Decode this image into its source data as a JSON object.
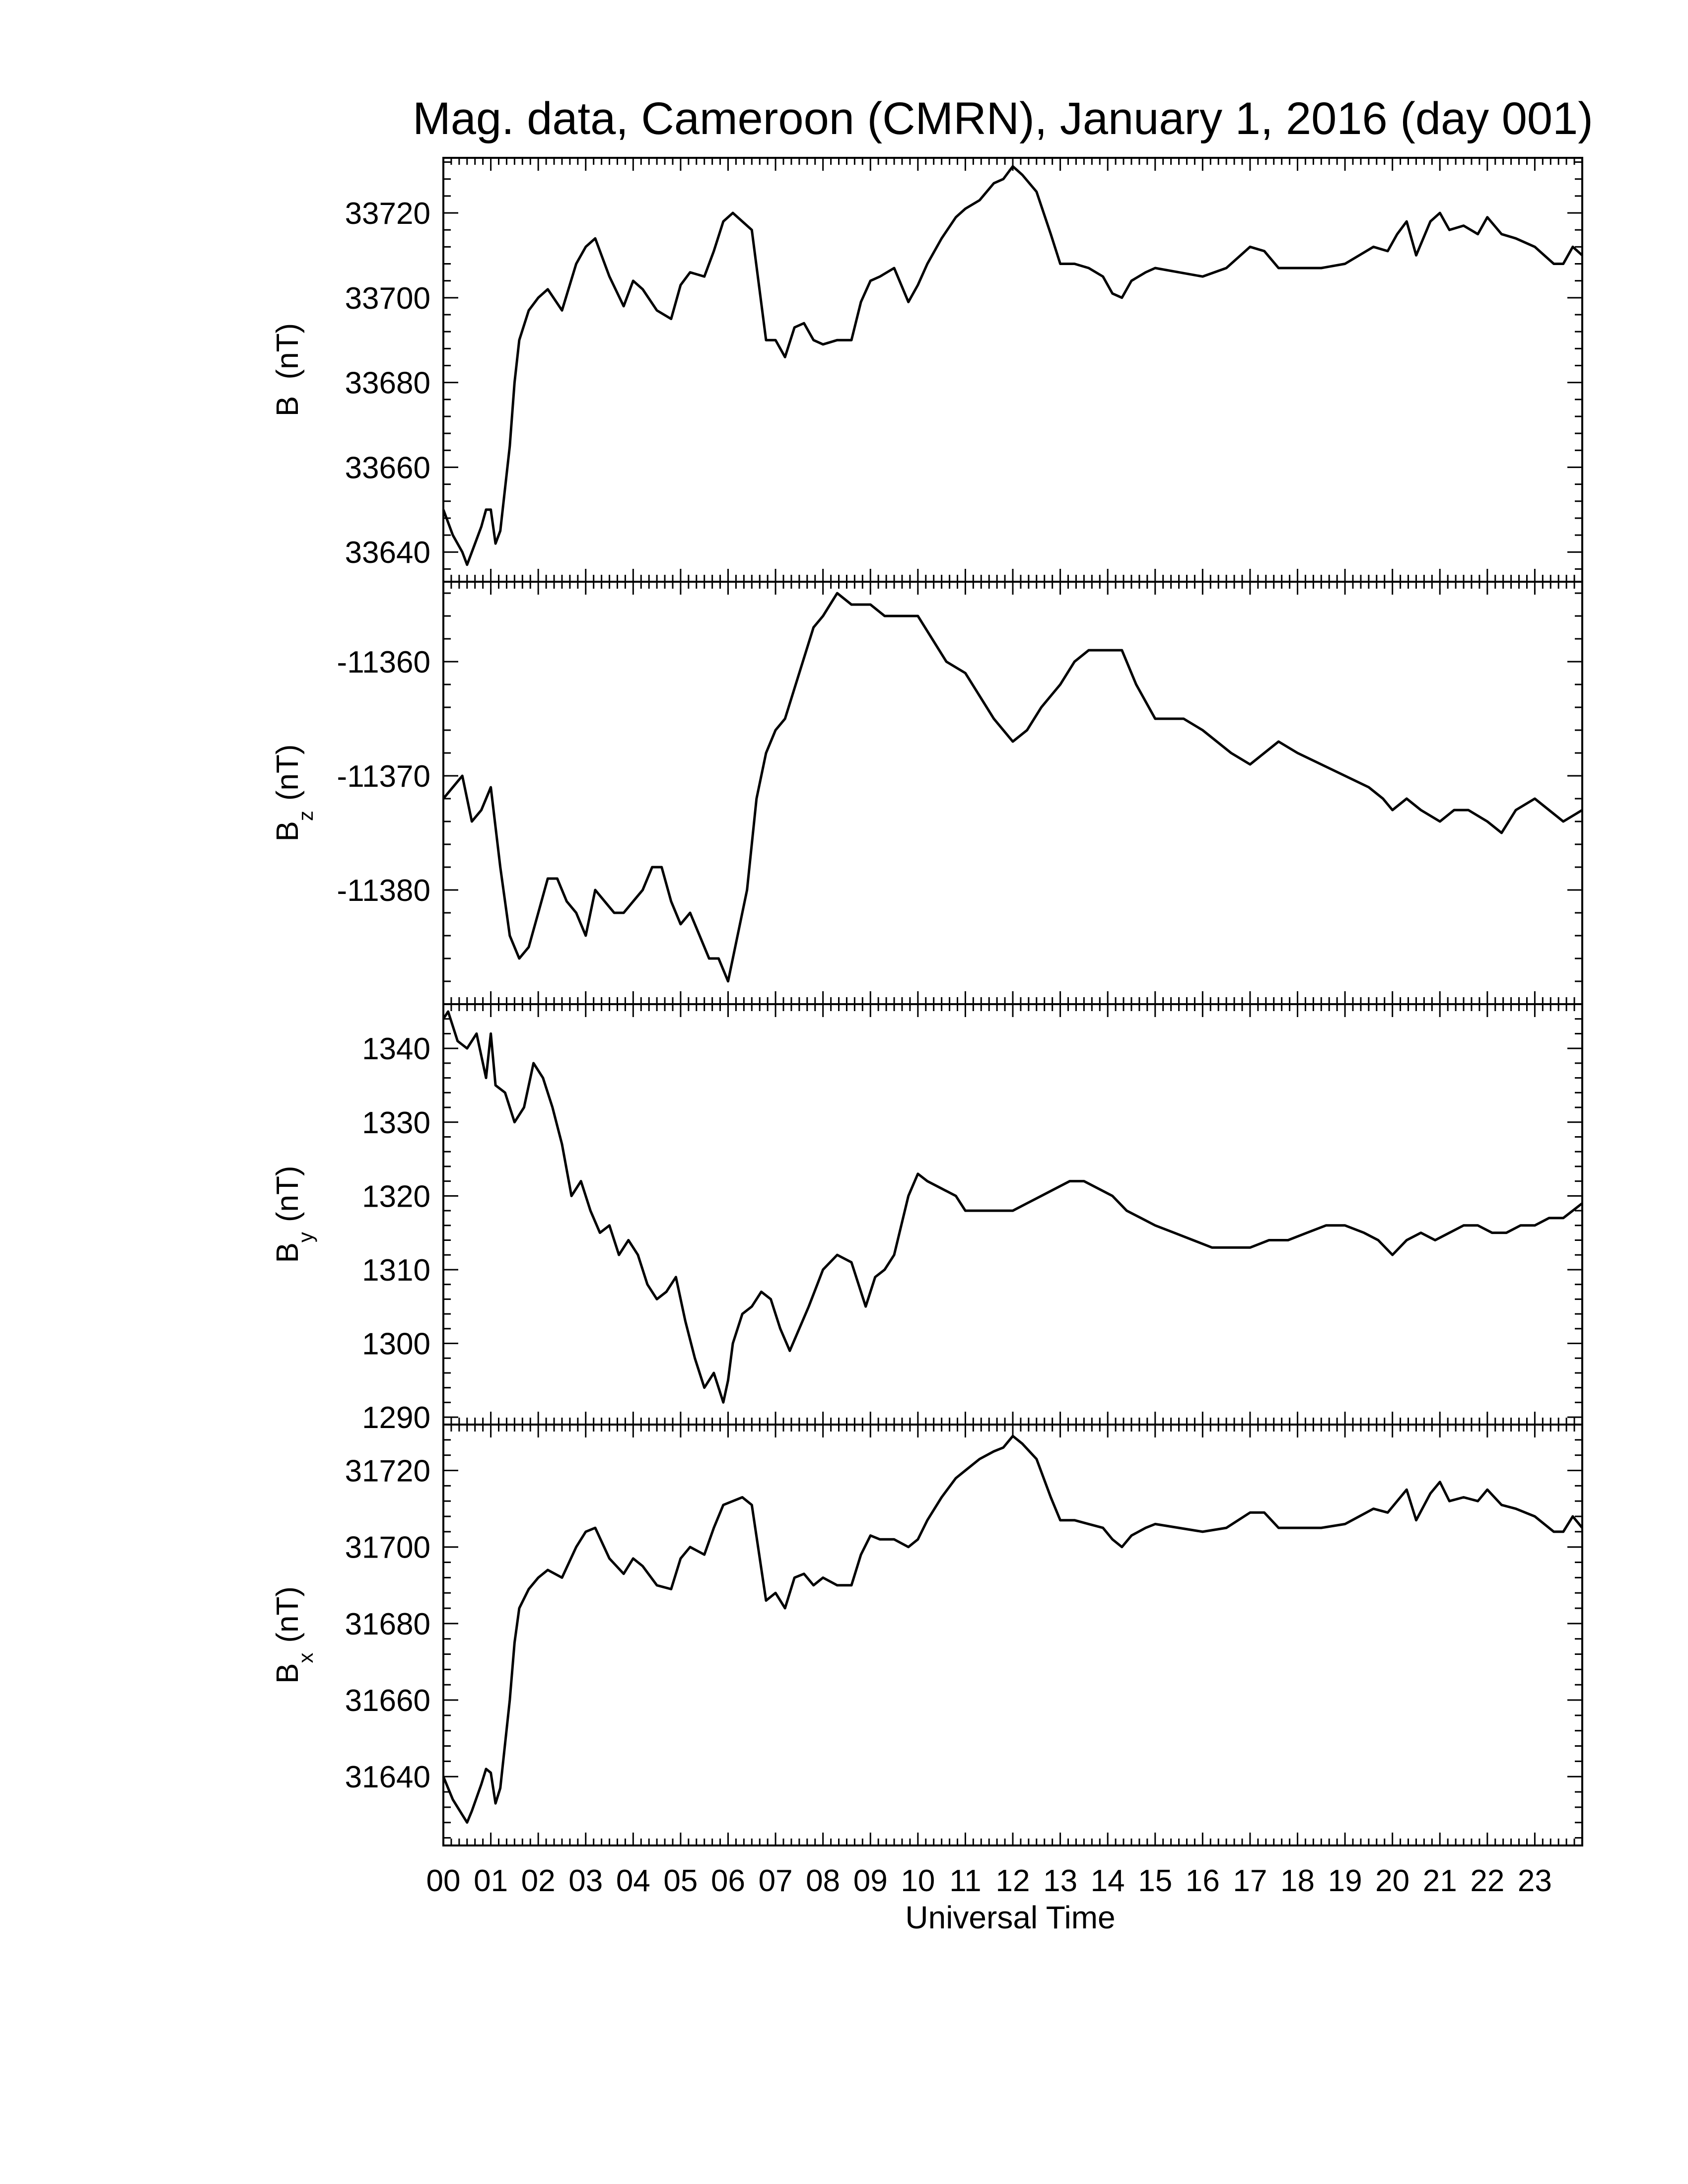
{
  "chart_data": {
    "type": "line",
    "title": "Mag. data, Cameroon (CMRN), January 1, 2016 (day 001)",
    "xlabel": "Universal Time",
    "x_tick_labels": [
      "00",
      "01",
      "02",
      "03",
      "04",
      "05",
      "06",
      "07",
      "08",
      "09",
      "10",
      "11",
      "12",
      "13",
      "14",
      "15",
      "16",
      "17",
      "18",
      "19",
      "20",
      "21",
      "22",
      "23"
    ],
    "xlim": [
      0,
      24
    ],
    "line_color": "#000000",
    "grid": false,
    "panels": [
      {
        "name": "B",
        "ylabel": "B (nT)",
        "ylabel_main": "B",
        "ylabel_sub": "",
        "ylabel_unit": "(nT)",
        "ylim": [
          33633,
          33733
        ],
        "yticks": [
          33640,
          33660,
          33680,
          33700,
          33720
        ],
        "ytick_labels": [
          "33640",
          "33660",
          "33680",
          "33700",
          "33720"
        ],
        "x": [
          0,
          0.2,
          0.4,
          0.5,
          0.6,
          0.8,
          0.9,
          1.0,
          1.1,
          1.2,
          1.4,
          1.5,
          1.6,
          1.8,
          2.0,
          2.2,
          2.5,
          2.8,
          3.0,
          3.2,
          3.5,
          3.8,
          4.0,
          4.2,
          4.5,
          4.8,
          5.0,
          5.2,
          5.5,
          5.7,
          5.9,
          6.1,
          6.3,
          6.5,
          6.8,
          7.0,
          7.2,
          7.4,
          7.6,
          7.8,
          8.0,
          8.3,
          8.6,
          8.8,
          9.0,
          9.2,
          9.5,
          9.8,
          10.0,
          10.2,
          10.5,
          10.8,
          11.0,
          11.3,
          11.6,
          11.8,
          12.0,
          12.2,
          12.5,
          12.8,
          13.0,
          13.3,
          13.6,
          13.9,
          14.1,
          14.3,
          14.5,
          14.8,
          15.0,
          15.5,
          16.0,
          16.5,
          17.0,
          17.3,
          17.6,
          17.8,
          18.0,
          18.5,
          19.0,
          19.3,
          19.6,
          19.9,
          20.1,
          20.3,
          20.5,
          20.8,
          21.0,
          21.2,
          21.5,
          21.8,
          22.0,
          22.3,
          22.6,
          23.0,
          23.2,
          23.4,
          23.6,
          23.8,
          24.0
        ],
        "y": [
          33650,
          33644,
          33640,
          33637,
          33640,
          33646,
          33650,
          33650,
          33642,
          33645,
          33665,
          33680,
          33690,
          33697,
          33700,
          33702,
          33697,
          33708,
          33712,
          33714,
          33705,
          33698,
          33704,
          33702,
          33697,
          33695,
          33703,
          33706,
          33705,
          33711,
          33718,
          33720,
          33718,
          33716,
          33690,
          33690,
          33686,
          33693,
          33694,
          33690,
          33689,
          33690,
          33690,
          33699,
          33704,
          33705,
          33707,
          33699,
          33703,
          33708,
          33714,
          33719,
          33721,
          33723,
          33727,
          33728,
          33731,
          33729,
          33725,
          33715,
          33708,
          33708,
          33707,
          33705,
          33701,
          33700,
          33704,
          33706,
          33707,
          33706,
          33705,
          33707,
          33712,
          33711,
          33707,
          33707,
          33707,
          33707,
          33708,
          33710,
          33712,
          33711,
          33715,
          33718,
          33710,
          33718,
          33720,
          33716,
          33717,
          33715,
          33719,
          33715,
          33714,
          33712,
          33710,
          33708,
          33708,
          33712,
          33710
        ]
      },
      {
        "name": "Bz",
        "ylabel": "Bz (nT)",
        "ylabel_main": "B",
        "ylabel_sub": "z",
        "ylabel_unit": "(nT)",
        "ylim": [
          -11390,
          -11353
        ],
        "yticks": [
          -11380,
          -11370,
          -11360
        ],
        "ytick_labels": [
          "-11380",
          "-11370",
          "-11360"
        ],
        "x": [
          0,
          0.2,
          0.4,
          0.6,
          0.8,
          1.0,
          1.2,
          1.4,
          1.6,
          1.8,
          2.0,
          2.2,
          2.4,
          2.6,
          2.8,
          3.0,
          3.2,
          3.4,
          3.6,
          3.8,
          4.0,
          4.2,
          4.4,
          4.6,
          4.8,
          5.0,
          5.2,
          5.4,
          5.6,
          5.8,
          6.0,
          6.2,
          6.4,
          6.6,
          6.8,
          7.0,
          7.2,
          7.5,
          7.8,
          8.0,
          8.3,
          8.6,
          9.0,
          9.3,
          9.6,
          10.0,
          10.3,
          10.6,
          11.0,
          11.3,
          11.6,
          12.0,
          12.3,
          12.6,
          13.0,
          13.3,
          13.6,
          14.0,
          14.3,
          14.6,
          15.0,
          15.3,
          15.6,
          16.0,
          16.3,
          16.6,
          17.0,
          17.3,
          17.6,
          18.0,
          18.5,
          19.0,
          19.5,
          19.8,
          20.0,
          20.3,
          20.6,
          21.0,
          21.3,
          21.6,
          22.0,
          22.3,
          22.6,
          23.0,
          23.3,
          23.6,
          24.0
        ],
        "y": [
          -11372,
          -11371,
          -11370,
          -11374,
          -11373,
          -11371,
          -11378,
          -11384,
          -11386,
          -11385,
          -11382,
          -11379,
          -11379,
          -11381,
          -11382,
          -11384,
          -11380,
          -11381,
          -11382,
          -11382,
          -11381,
          -11380,
          -11378,
          -11378,
          -11381,
          -11383,
          -11382,
          -11384,
          -11386,
          -11386,
          -11388,
          -11384,
          -11380,
          -11372,
          -11368,
          -11366,
          -11365,
          -11361,
          -11357,
          -11356,
          -11354,
          -11355,
          -11355,
          -11356,
          -11356,
          -11356,
          -11358,
          -11360,
          -11361,
          -11363,
          -11365,
          -11367,
          -11366,
          -11364,
          -11362,
          -11360,
          -11359,
          -11359,
          -11359,
          -11362,
          -11365,
          -11365,
          -11365,
          -11366,
          -11367,
          -11368,
          -11369,
          -11368,
          -11367,
          -11368,
          -11369,
          -11370,
          -11371,
          -11372,
          -11373,
          -11372,
          -11373,
          -11374,
          -11373,
          -11373,
          -11374,
          -11375,
          -11373,
          -11372,
          -11373,
          -11374,
          -11373
        ]
      },
      {
        "name": "By",
        "ylabel": "By (nT)",
        "ylabel_main": "B",
        "ylabel_sub": "y",
        "ylabel_unit": "(nT)",
        "ylim": [
          1289,
          1346
        ],
        "yticks": [
          1290,
          1300,
          1310,
          1320,
          1330,
          1340
        ],
        "ytick_labels": [
          "1290",
          "1300",
          "1310",
          "1320",
          "1330",
          "1340"
        ],
        "x": [
          0,
          0.1,
          0.3,
          0.5,
          0.7,
          0.9,
          1.0,
          1.1,
          1.3,
          1.5,
          1.7,
          1.9,
          2.1,
          2.3,
          2.5,
          2.7,
          2.9,
          3.1,
          3.3,
          3.5,
          3.7,
          3.9,
          4.1,
          4.3,
          4.5,
          4.7,
          4.9,
          5.1,
          5.3,
          5.5,
          5.7,
          5.9,
          6.0,
          6.1,
          6.3,
          6.5,
          6.7,
          6.9,
          7.1,
          7.3,
          7.5,
          7.7,
          8.0,
          8.3,
          8.6,
          8.9,
          9.1,
          9.3,
          9.5,
          9.8,
          10.0,
          10.2,
          10.5,
          10.8,
          11.0,
          11.3,
          11.6,
          12.0,
          12.3,
          12.6,
          12.9,
          13.2,
          13.5,
          13.8,
          14.1,
          14.4,
          14.7,
          15.0,
          15.4,
          15.8,
          16.2,
          16.6,
          17.0,
          17.4,
          17.8,
          18.2,
          18.6,
          19.0,
          19.4,
          19.7,
          20.0,
          20.3,
          20.6,
          20.9,
          21.2,
          21.5,
          21.8,
          22.1,
          22.4,
          22.7,
          23.0,
          23.3,
          23.6,
          24.0
        ],
        "y": [
          1344,
          1345,
          1341,
          1340,
          1342,
          1336,
          1342,
          1335,
          1334,
          1330,
          1332,
          1338,
          1336,
          1332,
          1327,
          1320,
          1322,
          1318,
          1315,
          1316,
          1312,
          1314,
          1312,
          1308,
          1306,
          1307,
          1309,
          1303,
          1298,
          1294,
          1296,
          1292,
          1295,
          1300,
          1304,
          1305,
          1307,
          1306,
          1302,
          1299,
          1302,
          1305,
          1310,
          1312,
          1311,
          1305,
          1309,
          1310,
          1312,
          1320,
          1323,
          1322,
          1321,
          1320,
          1318,
          1318,
          1318,
          1318,
          1319,
          1320,
          1321,
          1322,
          1322,
          1321,
          1320,
          1318,
          1317,
          1316,
          1315,
          1314,
          1313,
          1313,
          1313,
          1314,
          1314,
          1315,
          1316,
          1316,
          1315,
          1314,
          1312,
          1314,
          1315,
          1314,
          1315,
          1316,
          1316,
          1315,
          1315,
          1316,
          1316,
          1317,
          1317,
          1319
        ]
      },
      {
        "name": "Bx",
        "ylabel": "Bx (nT)",
        "ylabel_main": "B",
        "ylabel_sub": "x",
        "ylabel_unit": "(nT)",
        "ylim": [
          31622,
          31732
        ],
        "yticks": [
          31640,
          31660,
          31680,
          31700,
          31720
        ],
        "ytick_labels": [
          "31640",
          "31660",
          "31680",
          "31700",
          "31720"
        ],
        "x": [
          0,
          0.2,
          0.4,
          0.5,
          0.6,
          0.8,
          0.9,
          1.0,
          1.1,
          1.2,
          1.4,
          1.5,
          1.6,
          1.8,
          2.0,
          2.2,
          2.5,
          2.8,
          3.0,
          3.2,
          3.5,
          3.8,
          4.0,
          4.2,
          4.5,
          4.8,
          5.0,
          5.2,
          5.5,
          5.7,
          5.9,
          6.1,
          6.3,
          6.5,
          6.8,
          7.0,
          7.2,
          7.4,
          7.6,
          7.8,
          8.0,
          8.3,
          8.6,
          8.8,
          9.0,
          9.2,
          9.5,
          9.8,
          10.0,
          10.2,
          10.5,
          10.8,
          11.0,
          11.3,
          11.6,
          11.8,
          12.0,
          12.2,
          12.5,
          12.8,
          13.0,
          13.3,
          13.6,
          13.9,
          14.1,
          14.3,
          14.5,
          14.8,
          15.0,
          15.5,
          16.0,
          16.5,
          17.0,
          17.3,
          17.6,
          17.8,
          18.0,
          18.5,
          19.0,
          19.3,
          19.6,
          19.9,
          20.1,
          20.3,
          20.5,
          20.8,
          21.0,
          21.2,
          21.5,
          21.8,
          22.0,
          22.3,
          22.6,
          23.0,
          23.2,
          23.4,
          23.6,
          23.8,
          24.0
        ],
        "y": [
          31640,
          31634,
          31630,
          31628,
          31631,
          31638,
          31642,
          31641,
          31633,
          31637,
          31660,
          31675,
          31684,
          31689,
          31692,
          31694,
          31692,
          31700,
          31704,
          31705,
          31697,
          31693,
          31697,
          31695,
          31690,
          31689,
          31697,
          31700,
          31698,
          31705,
          31711,
          31712,
          31713,
          31711,
          31686,
          31688,
          31684,
          31692,
          31693,
          31690,
          31692,
          31690,
          31690,
          31698,
          31703,
          31702,
          31702,
          31700,
          31702,
          31707,
          31713,
          31718,
          31720,
          31723,
          31725,
          31726,
          31729,
          31727,
          31723,
          31713,
          31707,
          31707,
          31706,
          31705,
          31702,
          31700,
          31703,
          31705,
          31706,
          31705,
          31704,
          31705,
          31709,
          31709,
          31705,
          31705,
          31705,
          31705,
          31706,
          31708,
          31710,
          31709,
          31712,
          31715,
          31707,
          31714,
          31717,
          31712,
          31713,
          31712,
          31715,
          31711,
          31710,
          31708,
          31706,
          31704,
          31704,
          31708,
          31705
        ]
      }
    ]
  }
}
